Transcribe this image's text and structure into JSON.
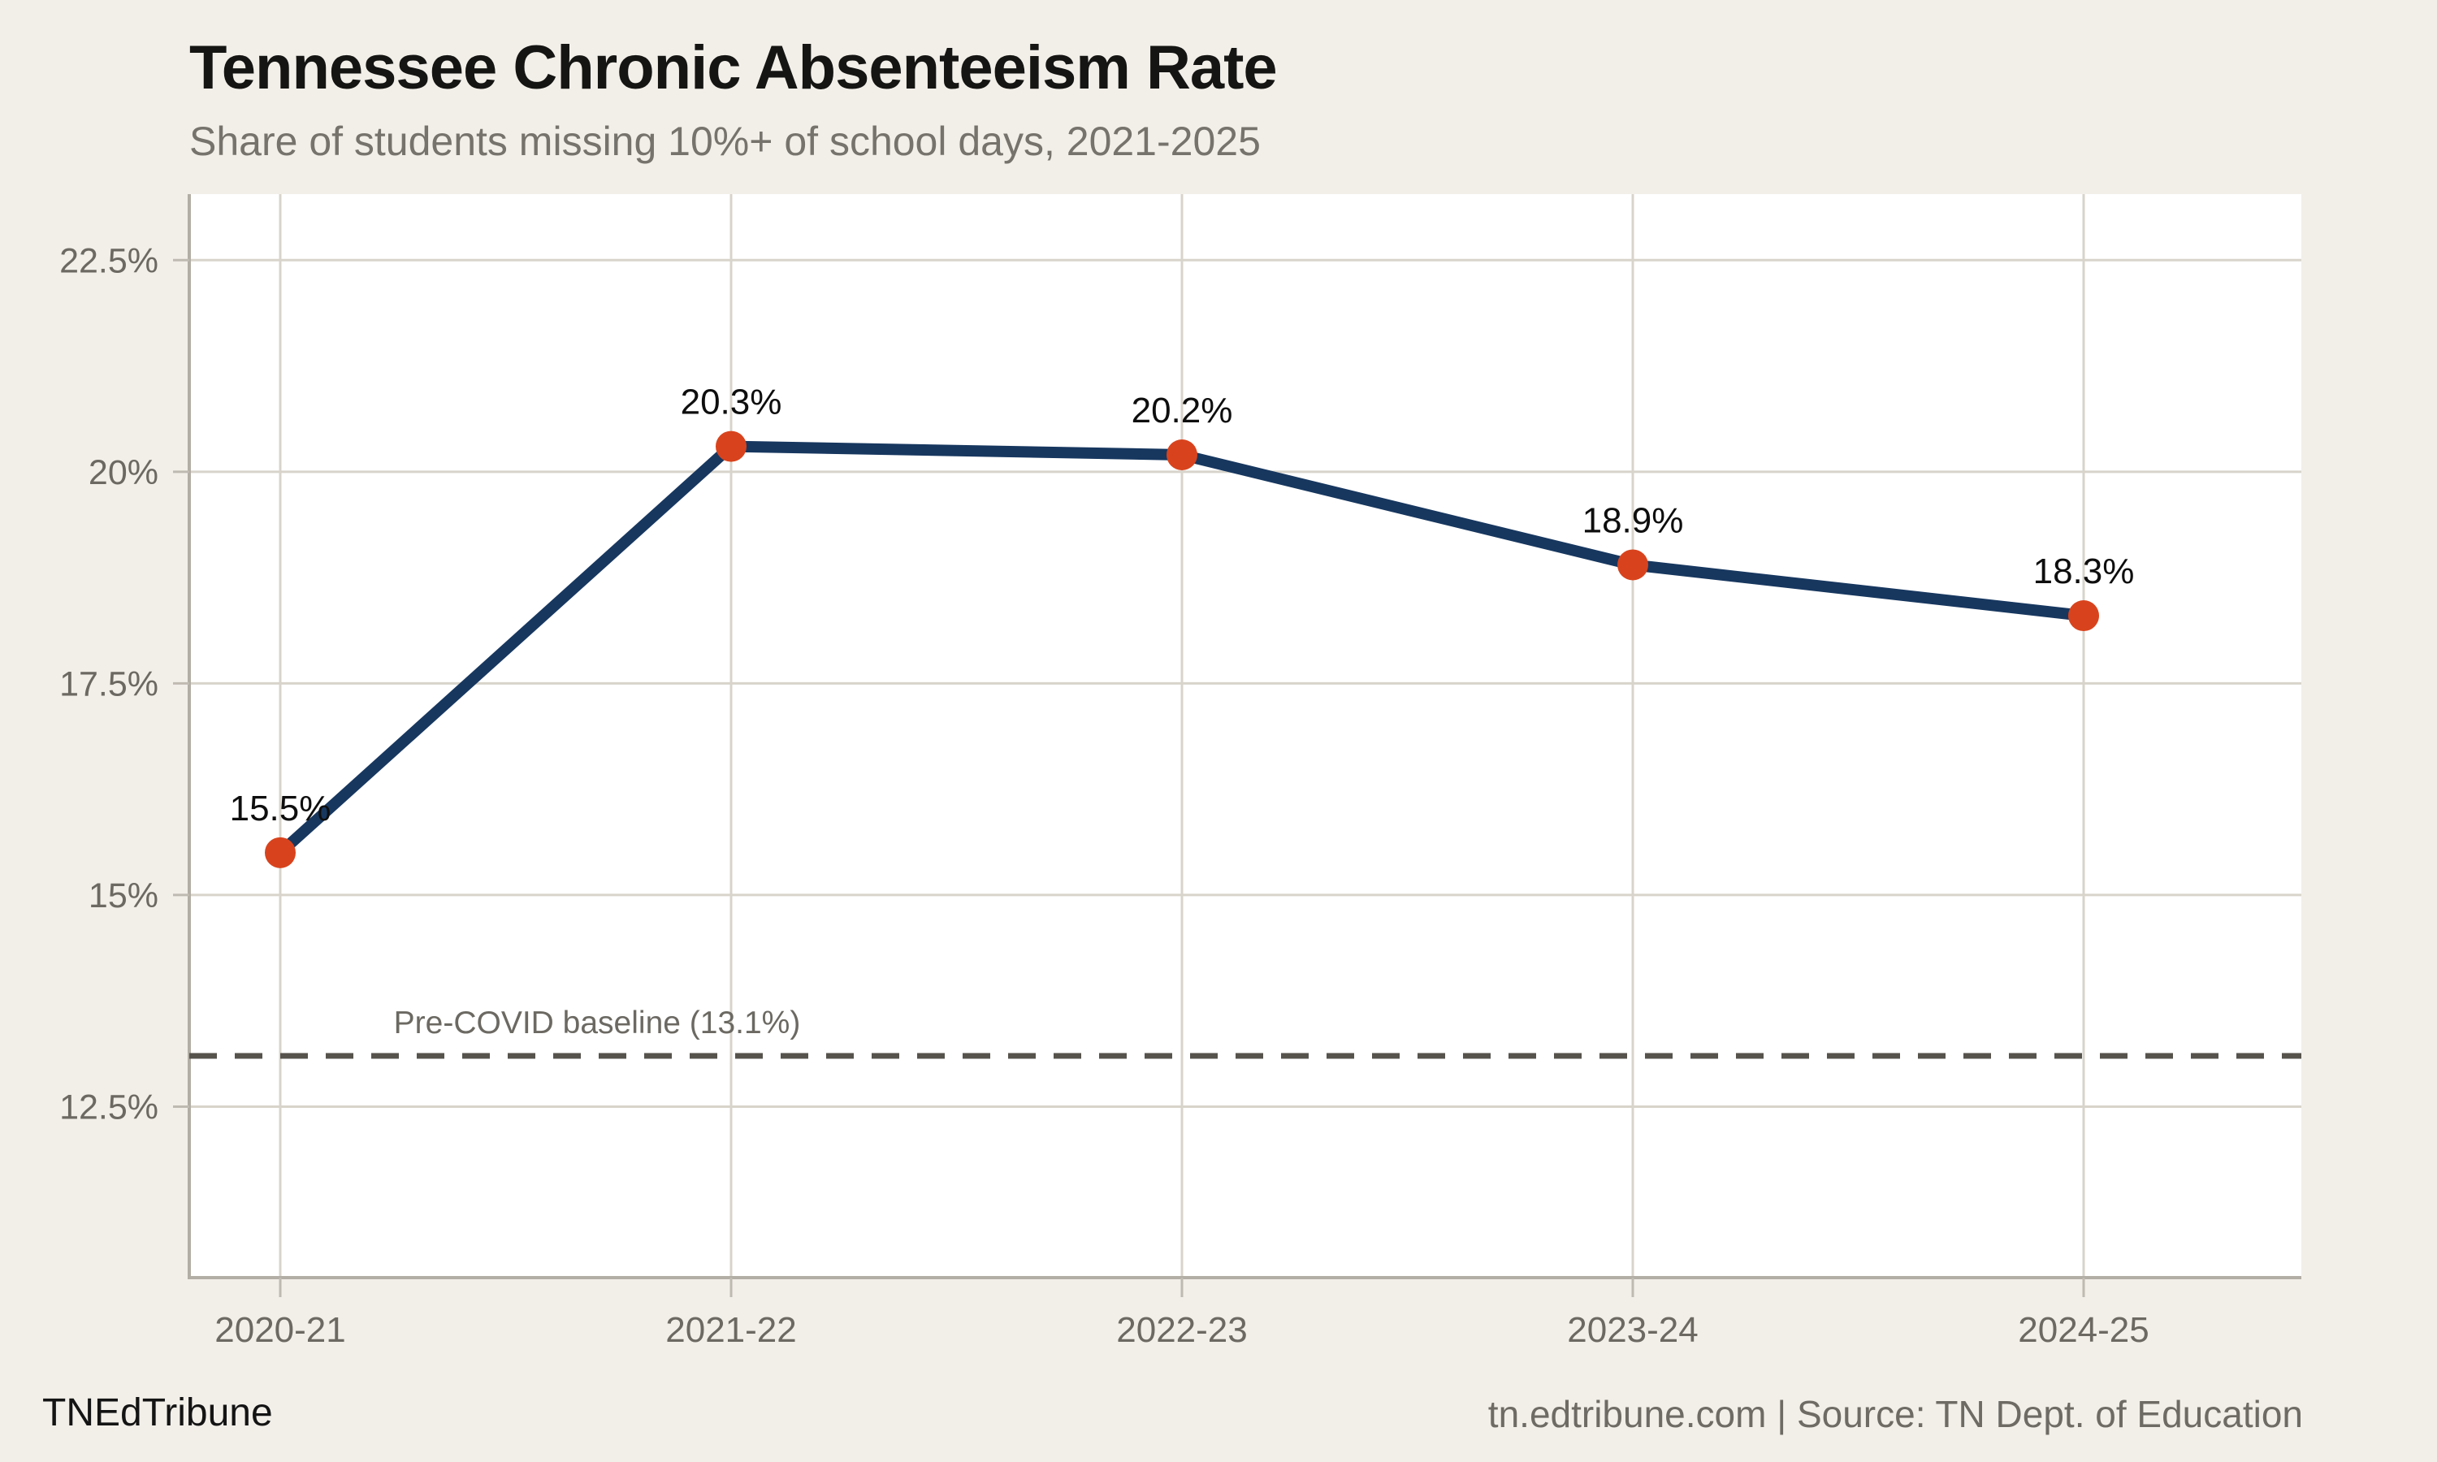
{
  "header": {
    "title": "Tennessee Chronic Absenteeism Rate",
    "subtitle": "Share of students missing 10%+ of school days, 2021-2025"
  },
  "footer": {
    "brand": "TNEdTribune",
    "attribution": "tn.edtribune.com | Source: TN Dept. of Education"
  },
  "colors": {
    "background": "#f2efe9",
    "plot_background": "#ffffff",
    "gridline": "#d8d4cb",
    "axis": "#b3aea5",
    "tick": "#bfbab1",
    "series_line": "#17375f",
    "point": "#d8431d",
    "baseline_dash": "#56534d",
    "tick_label": "#6c6963",
    "data_label": "#0e0e0e",
    "annotation": "#6b6962"
  },
  "chart_data": {
    "type": "line",
    "title": "Tennessee Chronic Absenteeism Rate",
    "subtitle": "Share of students missing 10%+ of school days, 2021-2025",
    "categories": [
      "2020-21",
      "2021-22",
      "2022-23",
      "2023-24",
      "2024-25"
    ],
    "values": [
      15.5,
      20.3,
      20.2,
      18.9,
      18.3
    ],
    "point_labels": [
      "15.5%",
      "20.3%",
      "20.2%",
      "18.9%",
      "18.3%"
    ],
    "xlabel": "",
    "ylabel": "",
    "ytick_values": [
      12.5,
      15,
      17.5,
      20,
      22.5
    ],
    "ytick_labels": [
      "12.5%",
      "15%",
      "17.5%",
      "20%",
      "22.5%"
    ],
    "ylim": [
      10.48,
      23.28
    ],
    "grid": true,
    "legend": "none",
    "baseline": {
      "label": "Pre-COVID baseline (13.1%)",
      "value": 13.1
    }
  }
}
